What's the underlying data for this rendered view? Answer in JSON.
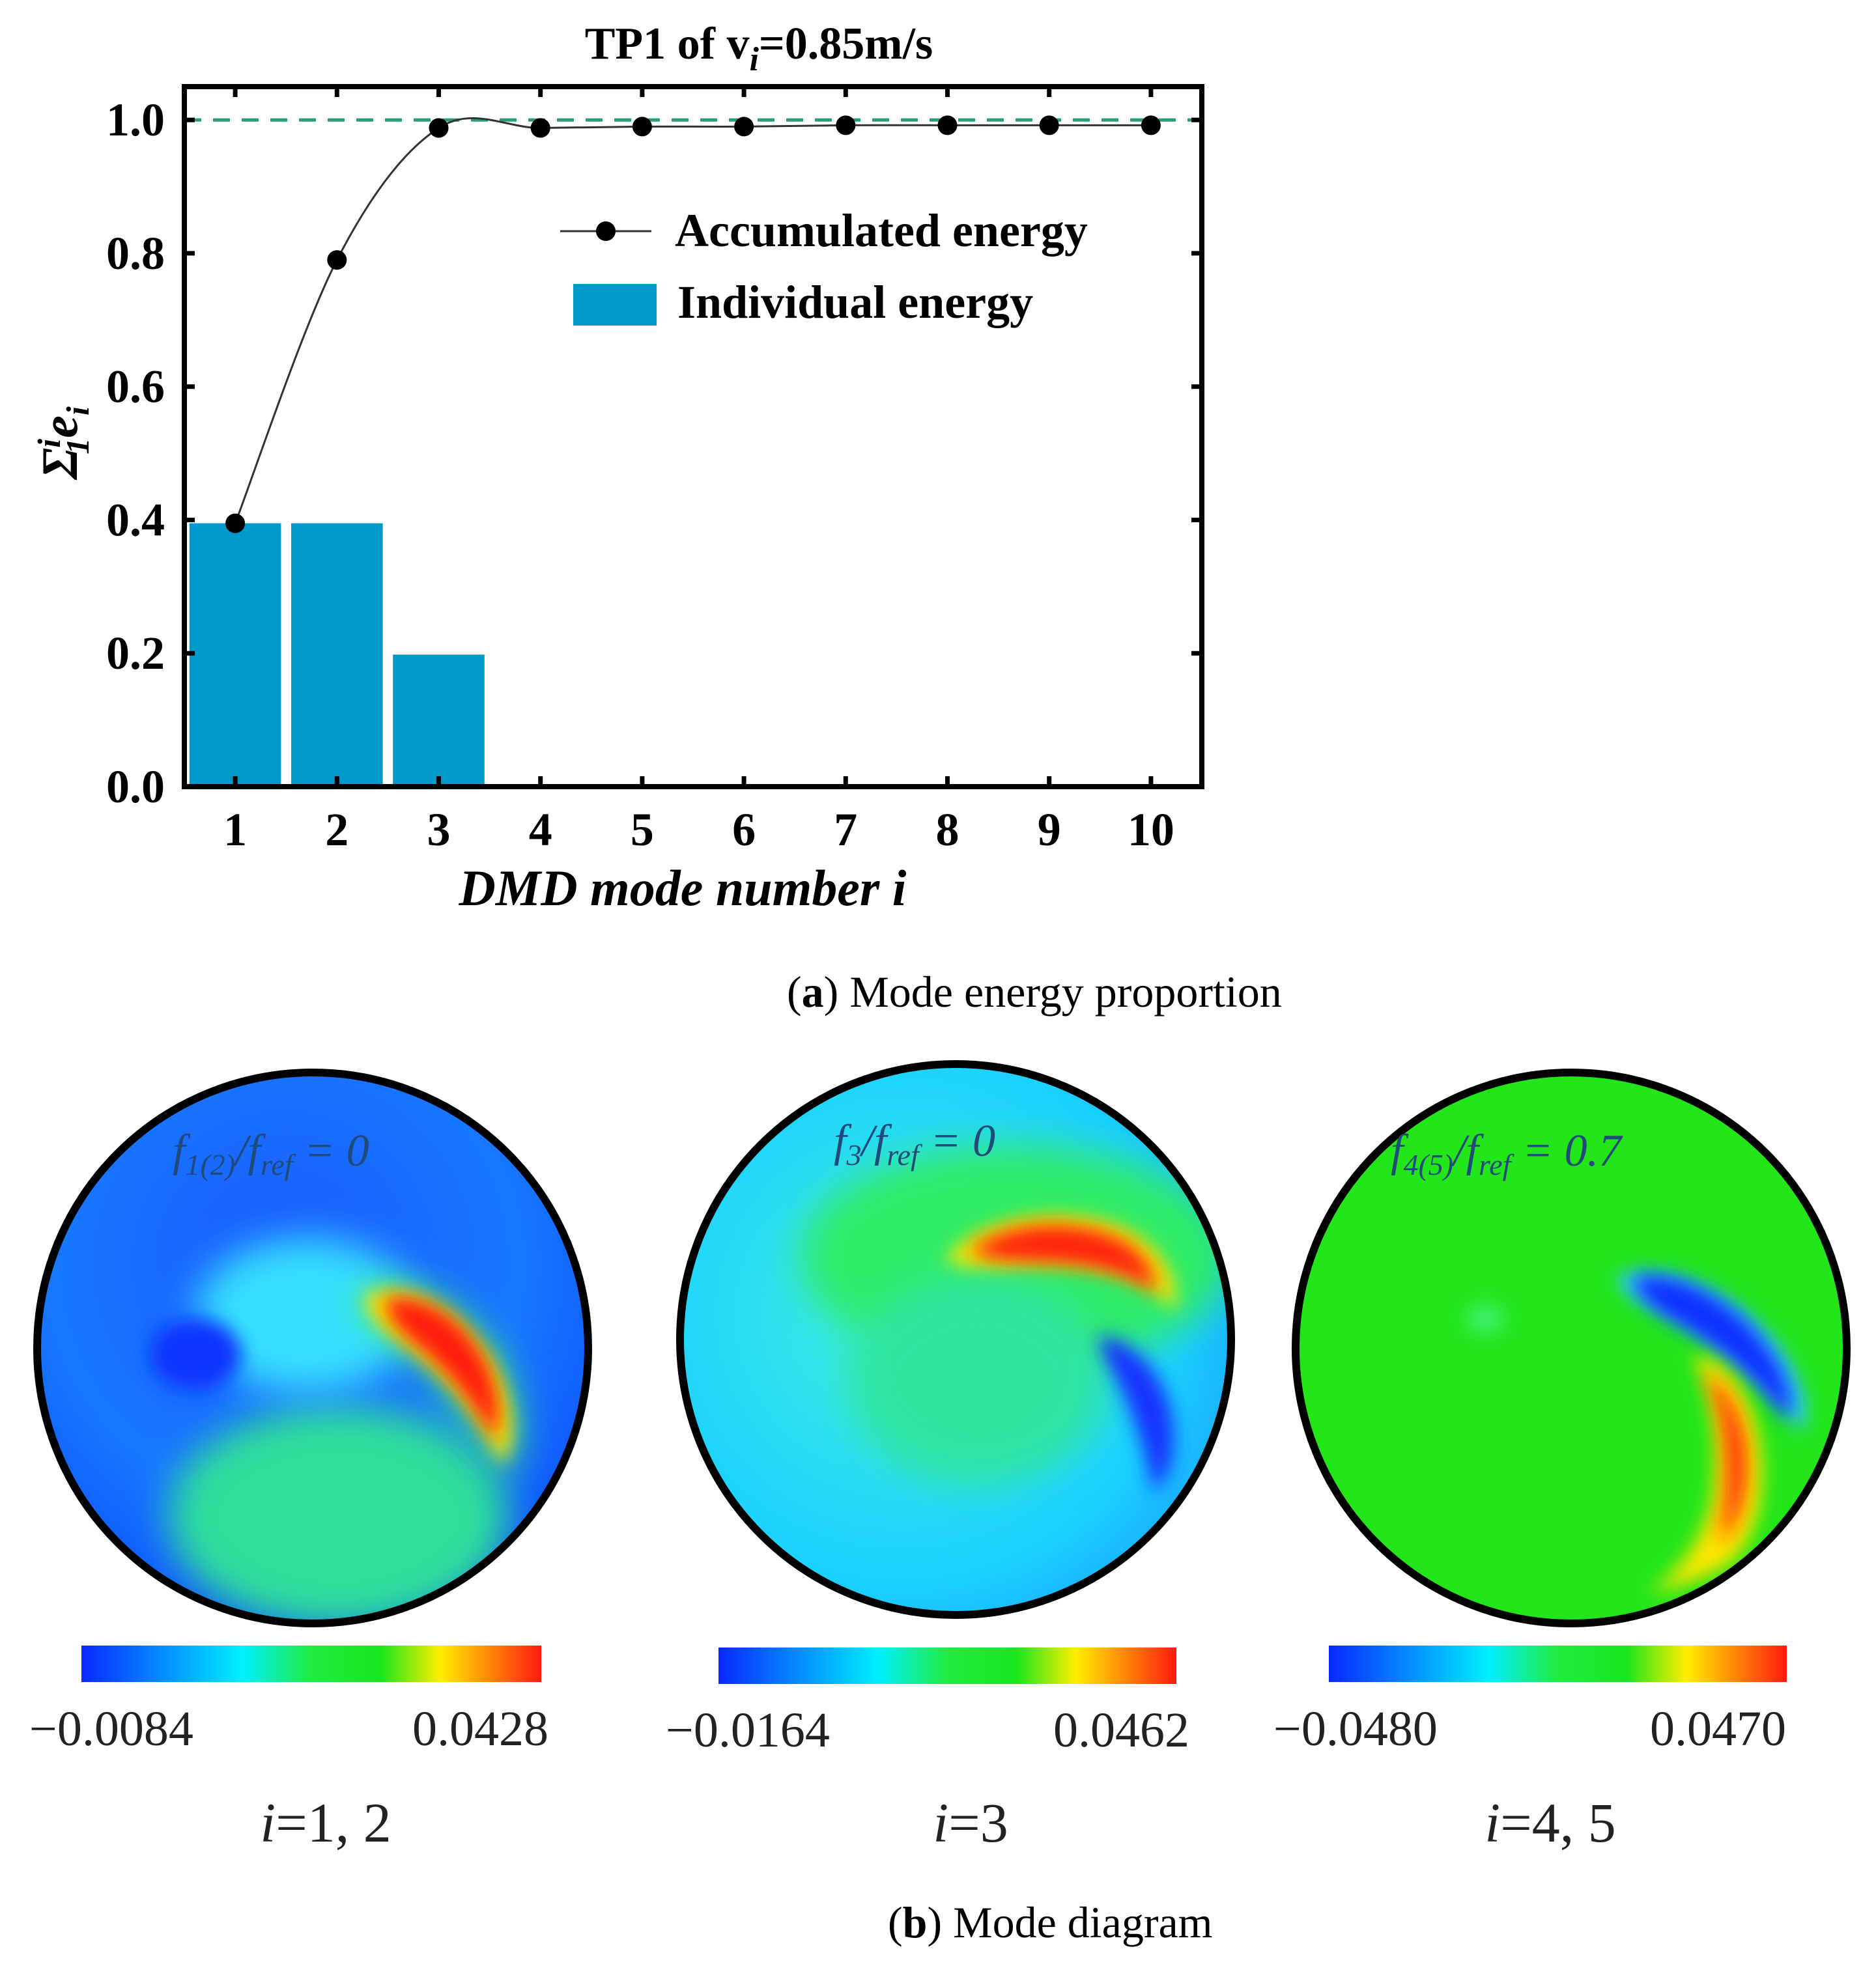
{
  "chart_data": [
    {
      "type": "bar",
      "title_main": "TP1 of v",
      "title_sub": "i",
      "title_rest": "=0.85m/s",
      "categories": [
        "1",
        "2",
        "3",
        "4",
        "5",
        "6",
        "7",
        "8",
        "9",
        "10"
      ],
      "series": [
        {
          "name": "Individual energy",
          "type": "bar",
          "values": [
            0.395,
            0.395,
            0.198,
            0,
            0,
            0,
            0,
            0,
            0,
            0
          ]
        },
        {
          "name": "Accumulated energy",
          "type": "line",
          "values": [
            0.395,
            0.79,
            0.988,
            0.988,
            0.99,
            0.99,
            0.992,
            0.992,
            0.992,
            0.992
          ]
        }
      ],
      "reference_line": 1.0,
      "ylim": [
        0,
        1.05
      ],
      "yticks": [
        "0.0",
        "0.2",
        "0.4",
        "0.6",
        "0.8",
        "1.0"
      ],
      "ylabel_parts": [
        "Σ",
        "i",
        "1",
        "e",
        "i"
      ],
      "xlabel": "DMD mode number i",
      "legend_position": "upper-right",
      "caption_bold": "a",
      "caption_text": "Mode energy proportion"
    },
    {
      "type": "heatmap",
      "panels": [
        {
          "f_sub": "1(2)",
          "f_value": "0",
          "cmin": "−0.0084",
          "cmax": "0.0428",
          "label_var": "i",
          "label_val": "=1, 2"
        },
        {
          "f_sub": "3",
          "f_value": "0",
          "cmin": "−0.0164",
          "cmax": "0.0462",
          "label_var": "i",
          "label_val": "=3"
        },
        {
          "f_sub": "4(5)",
          "f_value": "0.7",
          "cmin": "−0.0480",
          "cmax": "0.0470",
          "label_var": "i",
          "label_val": "=4, 5"
        }
      ],
      "f_letter": "f",
      "ref_sub": "ref",
      "caption_bold": "b",
      "caption_text": "Mode diagram"
    }
  ],
  "colors": {
    "bar": "#0099cc",
    "line": "#333333",
    "marker": "#000000",
    "ref_line": "#2a9d7a",
    "jet_blue": "#0a28ff",
    "jet_cyan": "#00f0ff",
    "jet_green": "#19e61e",
    "jet_yellow": "#ffee00",
    "jet_red": "#ff1a10"
  }
}
